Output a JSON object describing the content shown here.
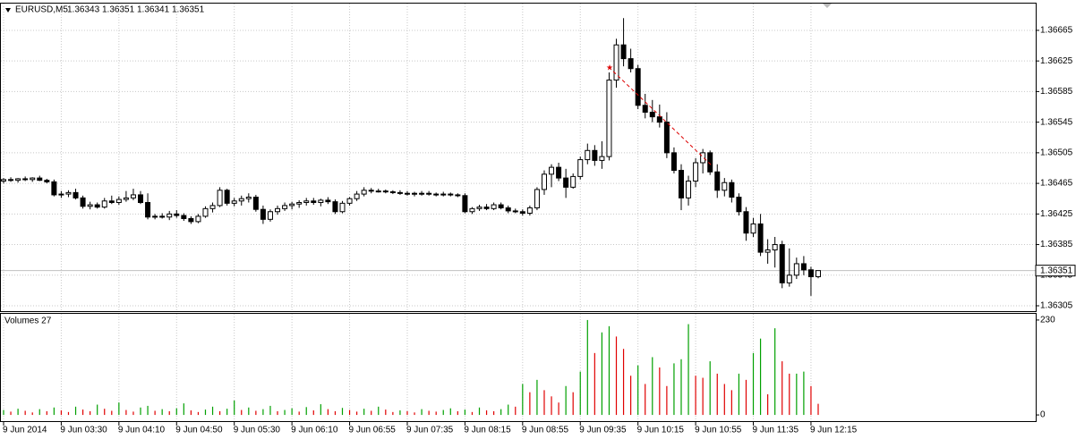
{
  "chart_data": {
    "type": "candlestick",
    "symbol": "EURUSD,M5",
    "categories": [
      "9 Jun 2014",
      null,
      null,
      null,
      null,
      null,
      null,
      null,
      "9 Jun 03:30",
      null,
      null,
      null,
      null,
      null,
      null,
      null,
      "9 Jun 04:10",
      null,
      null,
      null,
      null,
      null,
      null,
      null,
      "9 Jun 04:50",
      null,
      null,
      null,
      null,
      null,
      null,
      null,
      "9 Jun 05:30",
      null,
      null,
      null,
      null,
      null,
      null,
      null,
      "9 Jun 06:10",
      null,
      null,
      null,
      null,
      null,
      null,
      null,
      "9 Jun 06:55",
      null,
      null,
      null,
      null,
      null,
      null,
      null,
      "9 Jun 07:35",
      null,
      null,
      null,
      null,
      null,
      null,
      null,
      "9 Jun 08:15",
      null,
      null,
      null,
      null,
      null,
      null,
      null,
      "9 Jun 08:55",
      null,
      null,
      null,
      null,
      null,
      null,
      null,
      "9 Jun 09:35",
      null,
      null,
      null,
      null,
      null,
      null,
      null,
      "9 Jun 10:15",
      null,
      null,
      null,
      null,
      null,
      null,
      null,
      "9 Jun 10:55",
      null,
      null,
      null,
      null,
      null,
      null,
      null,
      "9 Jun 11:35",
      null,
      null,
      null,
      null,
      null,
      null,
      null,
      "9 Jun 12:15",
      null
    ],
    "open": [
      1.36468,
      1.3647,
      1.36469,
      1.36471,
      1.3647,
      1.36472,
      1.36469,
      1.36467,
      1.3645,
      1.36451,
      1.36453,
      1.36446,
      1.36435,
      1.36437,
      1.36434,
      1.36442,
      1.3644,
      1.36444,
      1.36446,
      1.3645,
      1.3644,
      1.36421,
      1.36422,
      1.36421,
      1.36425,
      1.36423,
      1.36419,
      1.36415,
      1.36422,
      1.36432,
      1.36436,
      1.36456,
      1.36439,
      1.36442,
      1.36445,
      1.36447,
      1.36431,
      1.36418,
      1.36428,
      1.36432,
      1.36436,
      1.36438,
      1.3644,
      1.36442,
      1.3644,
      1.36443,
      1.36441,
      1.36428,
      1.36439,
      1.36445,
      1.36451,
      1.36456,
      1.36455,
      1.36455,
      1.36454,
      1.36453,
      1.36452,
      1.36451,
      1.36452,
      1.36452,
      1.36451,
      1.3645,
      1.36451,
      1.3645,
      1.36449,
      1.36428,
      1.36432,
      1.36434,
      1.36432,
      1.36437,
      1.36433,
      1.36429,
      1.36428,
      1.36426,
      1.36433,
      1.36457,
      1.36477,
      1.36486,
      1.36472,
      1.3646,
      1.36474,
      1.36496,
      1.36508,
      1.36495,
      1.365,
      1.366,
      1.36646,
      1.36628,
      1.36615,
      1.36567,
      1.36558,
      1.36552,
      1.36545,
      1.36505,
      1.36482,
      1.36446,
      1.36468,
      1.36492,
      1.36505,
      1.3648,
      1.36456,
      1.36466,
      1.36447,
      1.36428,
      1.364,
      1.36412,
      1.36375,
      1.36378,
      1.36385,
      1.36335,
      1.36345,
      1.3636,
      1.36352,
      1.36343
    ],
    "high": [
      1.36472,
      1.36473,
      1.36472,
      1.36474,
      1.36473,
      1.36475,
      1.36471,
      1.3647,
      1.36455,
      1.36456,
      1.36458,
      1.36449,
      1.36441,
      1.3644,
      1.36446,
      1.36449,
      1.36448,
      1.36455,
      1.36458,
      1.36455,
      1.36452,
      1.36425,
      1.36426,
      1.36429,
      1.3643,
      1.36426,
      1.36422,
      1.36425,
      1.36435,
      1.3644,
      1.3646,
      1.36458,
      1.36446,
      1.36449,
      1.36452,
      1.3645,
      1.36436,
      1.36431,
      1.36436,
      1.3644,
      1.36441,
      1.36443,
      1.36446,
      1.36446,
      1.36445,
      1.36447,
      1.36444,
      1.36442,
      1.36447,
      1.36455,
      1.3646,
      1.36459,
      1.36458,
      1.36457,
      1.36456,
      1.36456,
      1.36455,
      1.36454,
      1.36455,
      1.36455,
      1.36453,
      1.36454,
      1.36453,
      1.36452,
      1.36452,
      1.36434,
      1.36437,
      1.36438,
      1.3644,
      1.3644,
      1.36436,
      1.36432,
      1.36431,
      1.36436,
      1.3646,
      1.36482,
      1.3649,
      1.36492,
      1.36484,
      1.36478,
      1.365,
      1.36517,
      1.36515,
      1.3652,
      1.3661,
      1.36654,
      1.36681,
      1.36641,
      1.3662,
      1.36582,
      1.36574,
      1.36568,
      1.36558,
      1.36512,
      1.3649,
      1.36475,
      1.36498,
      1.3651,
      1.36508,
      1.3649,
      1.36472,
      1.3647,
      1.36452,
      1.36434,
      1.3642,
      1.36425,
      1.36392,
      1.36395,
      1.3639,
      1.3638,
      1.36368,
      1.3637,
      1.36356,
      1.36351
    ],
    "low": [
      1.36465,
      1.36467,
      1.36466,
      1.36468,
      1.36467,
      1.36468,
      1.36465,
      1.36448,
      1.36446,
      1.36447,
      1.36444,
      1.36432,
      1.36431,
      1.36432,
      1.36432,
      1.36438,
      1.36437,
      1.36441,
      1.36443,
      1.36438,
      1.36418,
      1.36418,
      1.36419,
      1.36417,
      1.3642,
      1.36416,
      1.36412,
      1.36413,
      1.3642,
      1.36427,
      1.36434,
      1.36436,
      1.36435,
      1.36436,
      1.3644,
      1.36428,
      1.36412,
      1.36415,
      1.36424,
      1.36429,
      1.36431,
      1.36433,
      1.36436,
      1.36437,
      1.36435,
      1.36438,
      1.36425,
      1.36426,
      1.36436,
      1.36442,
      1.36448,
      1.36452,
      1.36453,
      1.36452,
      1.36451,
      1.3645,
      1.36449,
      1.36448,
      1.36449,
      1.36449,
      1.36448,
      1.36448,
      1.36448,
      1.36447,
      1.36426,
      1.36425,
      1.36429,
      1.3643,
      1.3643,
      1.36431,
      1.36426,
      1.36426,
      1.36423,
      1.36423,
      1.3643,
      1.3645,
      1.3646,
      1.36468,
      1.36446,
      1.36458,
      1.3647,
      1.3649,
      1.36488,
      1.36484,
      1.36495,
      1.3659,
      1.36618,
      1.3661,
      1.36562,
      1.3655,
      1.36545,
      1.36538,
      1.36498,
      1.36478,
      1.3643,
      1.36436,
      1.3646,
      1.36478,
      1.36476,
      1.36446,
      1.36448,
      1.3644,
      1.36423,
      1.3639,
      1.36395,
      1.3637,
      1.3636,
      1.36355,
      1.36328,
      1.3633,
      1.3634,
      1.36345,
      1.36318,
      1.36341
    ],
    "close": [
      1.3647,
      1.36469,
      1.36471,
      1.3647,
      1.36472,
      1.36469,
      1.36467,
      1.3645,
      1.36451,
      1.36453,
      1.36446,
      1.36435,
      1.36437,
      1.36434,
      1.36442,
      1.3644,
      1.36444,
      1.36446,
      1.3645,
      1.3644,
      1.36421,
      1.36422,
      1.36421,
      1.36425,
      1.36423,
      1.36419,
      1.36415,
      1.36422,
      1.36432,
      1.36436,
      1.36456,
      1.36439,
      1.36442,
      1.36445,
      1.36447,
      1.36431,
      1.36418,
      1.36428,
      1.36432,
      1.36436,
      1.36438,
      1.3644,
      1.36442,
      1.3644,
      1.36443,
      1.36441,
      1.36428,
      1.36439,
      1.36445,
      1.36451,
      1.36456,
      1.36455,
      1.36455,
      1.36454,
      1.36453,
      1.36452,
      1.36451,
      1.36452,
      1.36452,
      1.36452,
      1.3645,
      1.36451,
      1.3645,
      1.36449,
      1.36428,
      1.36432,
      1.36434,
      1.36432,
      1.36437,
      1.36433,
      1.36429,
      1.36428,
      1.36426,
      1.36433,
      1.36457,
      1.36477,
      1.36486,
      1.36472,
      1.3646,
      1.36474,
      1.36496,
      1.36508,
      1.36495,
      1.365,
      1.366,
      1.36646,
      1.36628,
      1.36615,
      1.36567,
      1.36558,
      1.36552,
      1.36545,
      1.36505,
      1.36482,
      1.36446,
      1.36468,
      1.36492,
      1.36505,
      1.3648,
      1.36456,
      1.36466,
      1.36447,
      1.36428,
      1.364,
      1.36412,
      1.36375,
      1.36378,
      1.36385,
      1.36335,
      1.36345,
      1.3636,
      1.36352,
      1.36343,
      1.36351
    ],
    "up_color": "#ffffff",
    "down_color": "#000000",
    "ylim": [
      1.36298,
      1.367
    ],
    "yticks": [
      1.36305,
      1.36345,
      1.36385,
      1.36425,
      1.36465,
      1.36505,
      1.36545,
      1.36585,
      1.36625,
      1.36665
    ],
    "grid": true,
    "volume": {
      "title": "Volumes 27",
      "values": [
        12,
        8,
        15,
        10,
        6,
        14,
        9,
        18,
        11,
        7,
        20,
        13,
        9,
        25,
        15,
        10,
        30,
        12,
        8,
        18,
        22,
        10,
        14,
        9,
        16,
        28,
        11,
        7,
        13,
        20,
        9,
        15,
        35,
        12,
        18,
        10,
        14,
        22,
        9,
        12,
        16,
        8,
        19,
        11,
        26,
        14,
        9,
        17,
        12,
        8,
        15,
        10,
        20,
        13,
        7,
        11,
        9,
        6,
        14,
        10,
        8,
        12,
        16,
        9,
        13,
        7,
        18,
        11,
        9,
        14,
        25,
        20,
        75,
        55,
        85,
        60,
        45,
        30,
        70,
        55,
        105,
        230,
        150,
        200,
        215,
        190,
        160,
        95,
        120,
        75,
        140,
        115,
        70,
        125,
        135,
        220,
        95,
        90,
        130,
        100,
        75,
        60,
        100,
        85,
        150,
        185,
        50,
        210,
        130,
        100,
        100,
        105,
        70,
        27
      ],
      "up_color": "#00a000",
      "down_color": "#e00000",
      "ylim": [
        -15,
        245
      ],
      "yticks": [
        0,
        230
      ]
    }
  }
}
